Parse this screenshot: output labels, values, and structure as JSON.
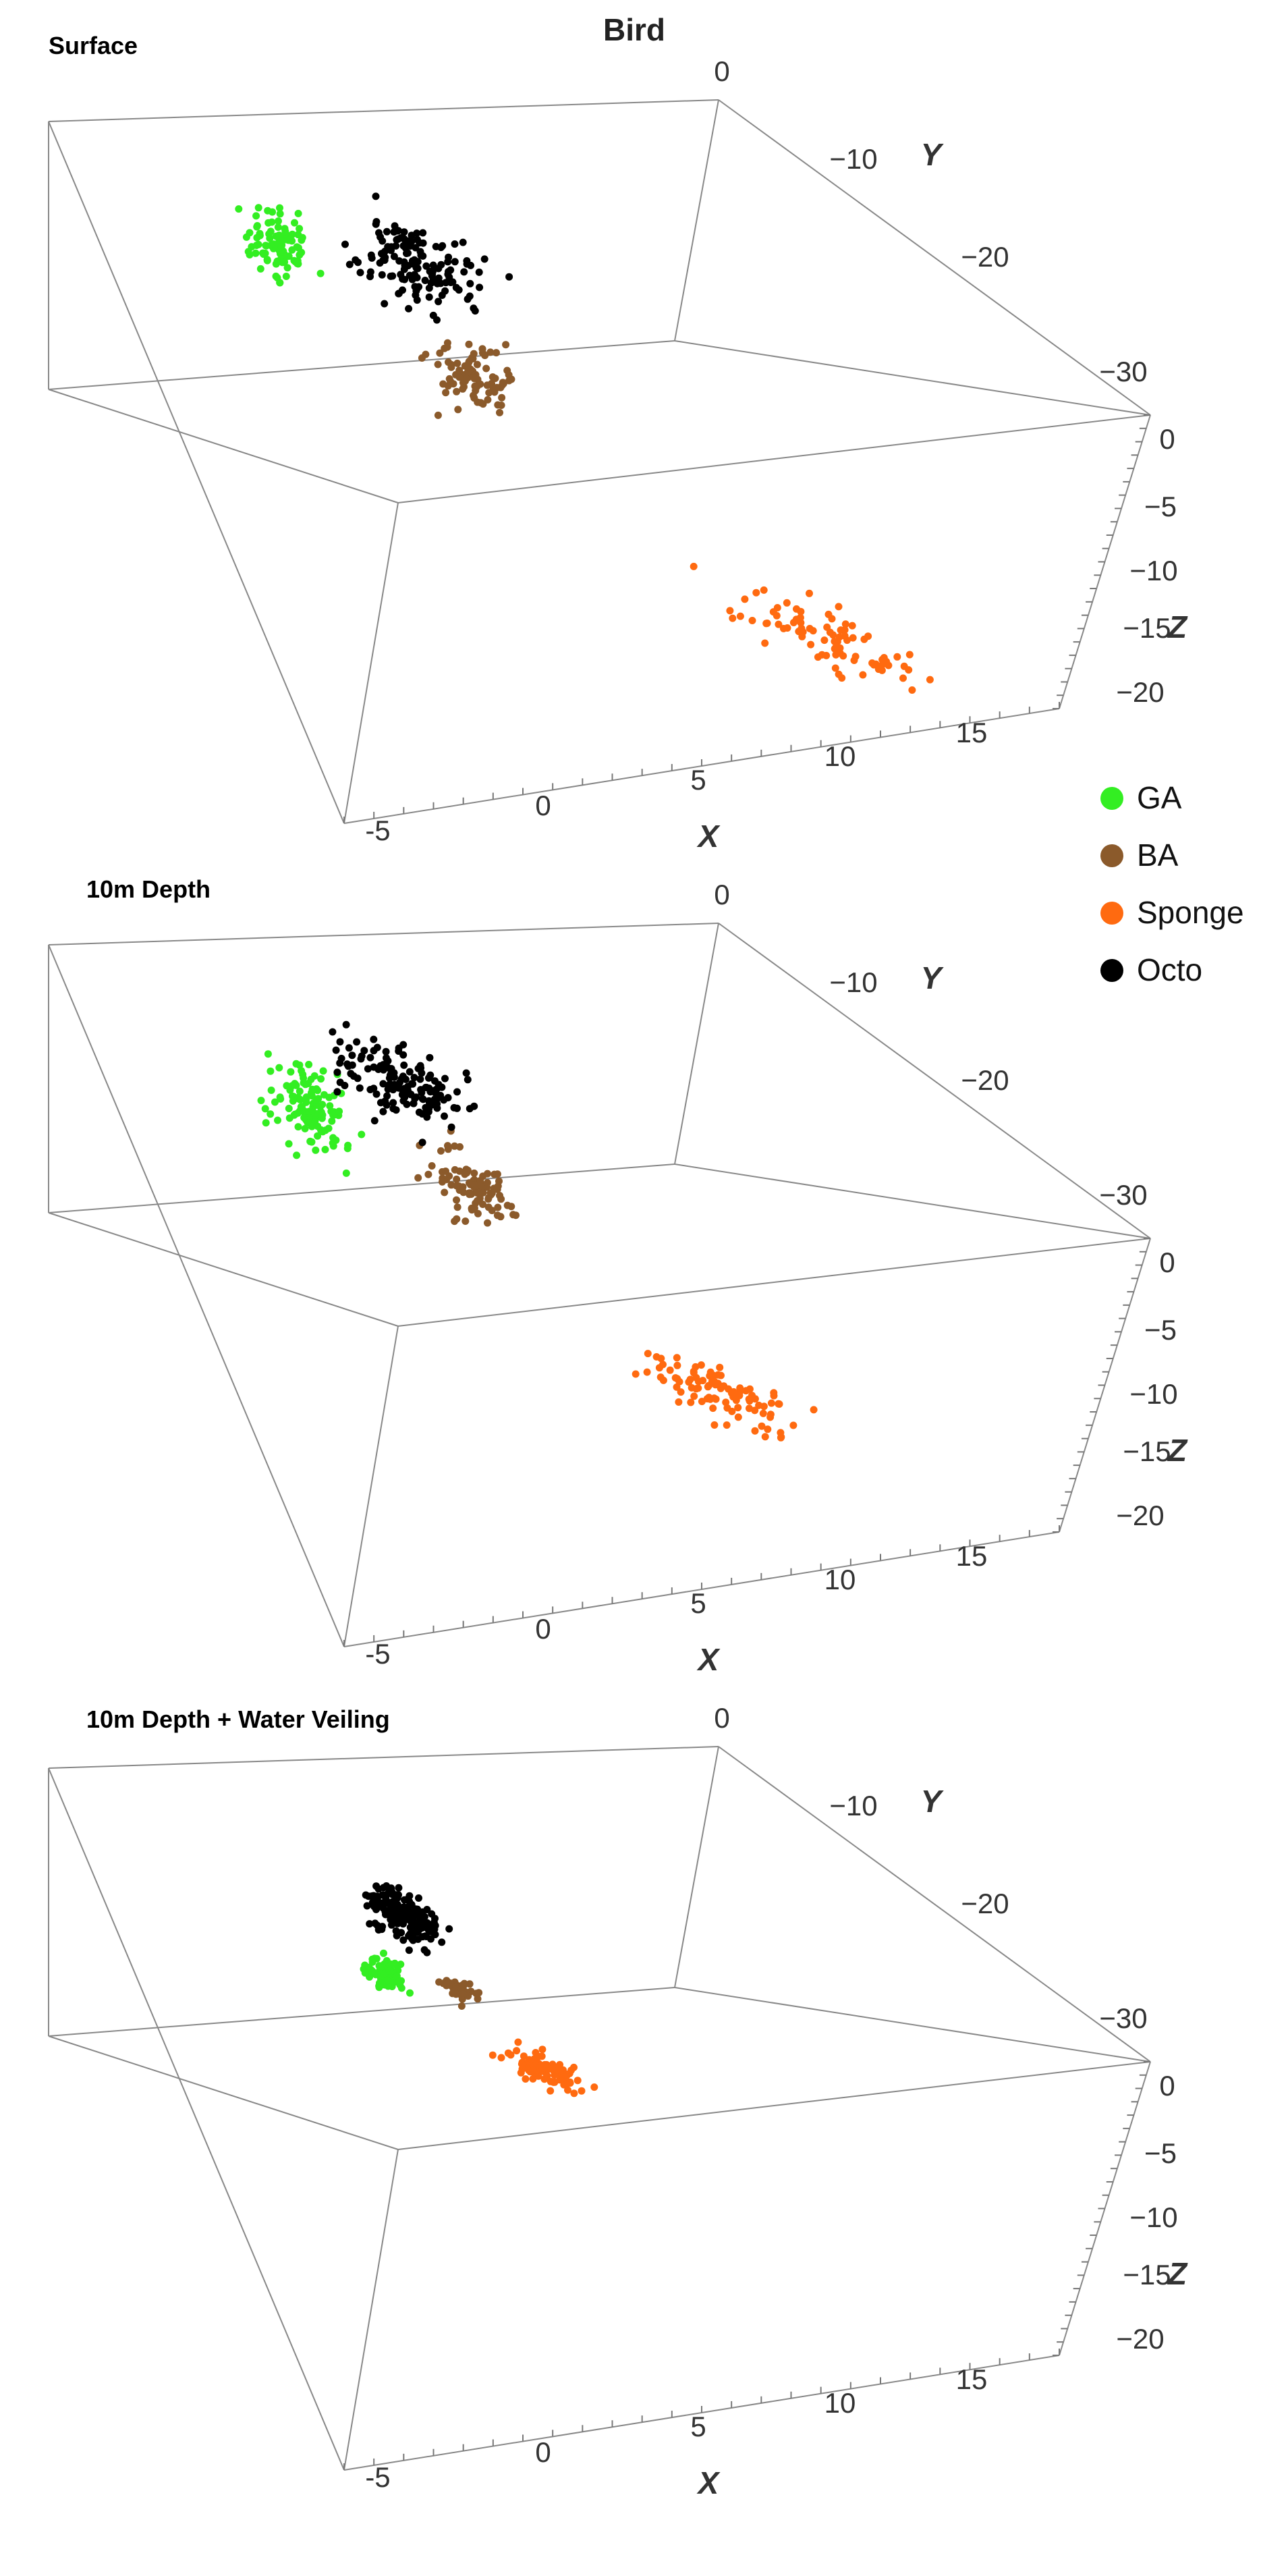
{
  "figure_title": "Bird",
  "legend": [
    {
      "name": "GA",
      "color": "#33ee22"
    },
    {
      "name": "BA",
      "color": "#8b5a2b"
    },
    {
      "name": "Sponge",
      "color": "#ff6a10"
    },
    {
      "name": "Octo",
      "color": "#000000"
    }
  ],
  "chart_data": [
    {
      "type": "scatter",
      "title": "Surface",
      "xlabel": "X",
      "ylabel": "Y",
      "zlabel": "Z",
      "xlim": [
        -7,
        18
      ],
      "ylim": [
        -35,
        0
      ],
      "zlim": [
        -20,
        3
      ],
      "x_ticks": [
        "-5",
        "0",
        "5",
        "10",
        "15"
      ],
      "y_ticks": [
        "0",
        "-10",
        "-20",
        "-30"
      ],
      "z_ticks": [
        "0",
        "-5",
        "-10",
        "-15",
        "-20"
      ],
      "series": [
        {
          "name": "GA",
          "center": [
            -4.5,
            -12,
            -3
          ],
          "spread": [
            0.8,
            5.5,
            1.2
          ],
          "count": 95
        },
        {
          "name": "BA",
          "center": [
            1.5,
            -20,
            -3.5
          ],
          "spread": [
            1.0,
            4.0,
            1.2
          ],
          "count": 90
        },
        {
          "name": "Sponge",
          "center": [
            12.5,
            -30,
            -9
          ],
          "spread": [
            2.5,
            3.0,
            1.5
          ],
          "count": 85
        },
        {
          "name": "Octo",
          "center": [
            -0.5,
            -9,
            -1
          ],
          "spread": [
            1.5,
            5.0,
            1.0
          ],
          "count": 140
        }
      ]
    },
    {
      "type": "scatter",
      "title": "10m Depth",
      "xlabel": "X",
      "ylabel": "Y",
      "zlabel": "Z",
      "xlim": [
        -7,
        18
      ],
      "ylim": [
        -35,
        0
      ],
      "zlim": [
        -20,
        3
      ],
      "x_ticks": [
        "-5",
        "0",
        "5",
        "10",
        "15"
      ],
      "y_ticks": [
        "0",
        "-10",
        "-20",
        "-30"
      ],
      "z_ticks": [
        "0",
        "-5",
        "-10",
        "-15",
        "-20"
      ],
      "series": [
        {
          "name": "GA",
          "center": [
            -3.5,
            -15,
            -4
          ],
          "spread": [
            0.9,
            5.5,
            1.4
          ],
          "count": 120
        },
        {
          "name": "BA",
          "center": [
            1.5,
            -19,
            -3
          ],
          "spread": [
            1.1,
            4.0,
            1.2
          ],
          "count": 95
        },
        {
          "name": "Sponge",
          "center": [
            9.0,
            -29,
            -7
          ],
          "spread": [
            2.2,
            3.0,
            1.4
          ],
          "count": 100
        },
        {
          "name": "Octo",
          "center": [
            -0.8,
            -9,
            -1
          ],
          "spread": [
            1.5,
            5.0,
            1.0
          ],
          "count": 150
        }
      ]
    },
    {
      "type": "scatter",
      "title": "10m Depth + Water Veiling",
      "xlabel": "X",
      "ylabel": "Y",
      "zlabel": "Z",
      "xlim": [
        -7,
        18
      ],
      "ylim": [
        -35,
        0
      ],
      "zlim": [
        -20,
        3
      ],
      "x_ticks": [
        "-5",
        "0",
        "5",
        "10",
        "15"
      ],
      "y_ticks": [
        "0",
        "-10",
        "-20",
        "-30"
      ],
      "z_ticks": [
        "0",
        "-5",
        "-10",
        "-15",
        "-20"
      ],
      "series": [
        {
          "name": "GA",
          "center": [
            -1.2,
            -16,
            -4.5
          ],
          "spread": [
            0.5,
            1.6,
            0.7
          ],
          "count": 90
        },
        {
          "name": "BA",
          "center": [
            0.9,
            -15,
            -3.5
          ],
          "spread": [
            0.4,
            1.0,
            0.5
          ],
          "count": 40
        },
        {
          "name": "Sponge",
          "center": [
            3.5,
            -19,
            -5.5
          ],
          "spread": [
            0.9,
            1.6,
            0.8
          ],
          "count": 90
        },
        {
          "name": "Octo",
          "center": [
            -0.8,
            -10,
            -1.5
          ],
          "spread": [
            0.9,
            3.0,
            0.6
          ],
          "count": 170
        }
      ]
    }
  ]
}
